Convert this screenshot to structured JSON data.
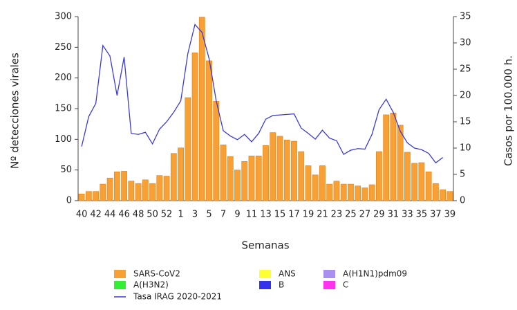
{
  "chart_data": {
    "type": "bar-line",
    "categories": [
      "40",
      null,
      "42",
      null,
      "44",
      null,
      "46",
      null,
      "48",
      null,
      "50",
      null,
      "52",
      null,
      "1",
      null,
      "3",
      null,
      "5",
      null,
      "7",
      null,
      "9",
      null,
      "11",
      null,
      "13",
      null,
      "15",
      null,
      "17",
      null,
      "19",
      null,
      "21",
      null,
      "23",
      null,
      "25",
      null,
      "27",
      null,
      "29",
      null,
      "31",
      null,
      "33",
      null,
      "35",
      null,
      "37",
      null,
      "39"
    ],
    "series": [
      {
        "name": "SARS-CoV2",
        "color": "#f7a035",
        "kind": "bar",
        "axis": "y",
        "values": [
          11,
          15,
          15,
          27,
          37,
          47,
          48,
          32,
          28,
          34,
          28,
          41,
          40,
          77,
          86,
          168,
          241,
          299,
          228,
          162,
          91,
          72,
          50,
          64,
          73,
          73,
          90,
          111,
          105,
          99,
          97,
          80,
          57,
          42,
          57,
          27,
          32,
          27,
          27,
          24,
          21,
          26,
          80,
          140,
          143,
          123,
          79,
          61,
          62,
          47,
          28,
          18,
          15
        ]
      },
      {
        "name": "Tasa IRAG 2020-2021",
        "color": "#3a3ad6",
        "kind": "line",
        "axis": "y2",
        "values": [
          10.3,
          16,
          18.5,
          29.5,
          27.5,
          20,
          27.3,
          12.8,
          12.6,
          13,
          10.8,
          13.6,
          15,
          16.8,
          19,
          28,
          33.5,
          32,
          27,
          19,
          13.3,
          12.3,
          11.6,
          12.6,
          11.2,
          12.8,
          15.5,
          16.2,
          16.3,
          16.4,
          16.5,
          13.8,
          12.8,
          11.7,
          13.4,
          11.9,
          11.4,
          8.8,
          9.6,
          9.9,
          9.8,
          12.6,
          17.3,
          19.3,
          16.8,
          13.2,
          11,
          10,
          9.7,
          9,
          7.2,
          8.2,
          null
        ]
      }
    ],
    "legend": [
      {
        "name": "ANS",
        "color": "#ffff33"
      },
      {
        "name": "A(H1N1)pdm09",
        "color": "#a98ff0"
      },
      {
        "name": "A(H3N2)",
        "color": "#33ee33"
      },
      {
        "name": "B",
        "color": "#3333ee"
      },
      {
        "name": "C",
        "color": "#ff33ee"
      }
    ],
    "ylim": [
      0,
      300
    ],
    "yticks": [
      0,
      50,
      100,
      150,
      200,
      250,
      300
    ],
    "y2lim": [
      0,
      35
    ],
    "y2ticks": [
      0,
      5,
      10,
      15,
      20,
      25,
      30,
      35
    ],
    "ylabel": "Nº detecciones virales",
    "y2label": "Casos por 100.000 h.",
    "xlabel": "Semanas"
  }
}
